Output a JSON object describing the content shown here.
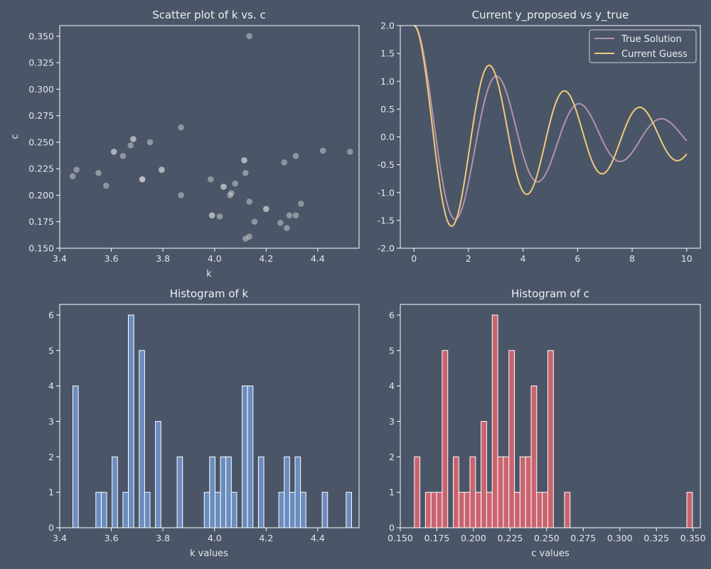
{
  "colors": {
    "background": "#4a5568",
    "axis": "#ffffff",
    "scatter": "#c8c8c8",
    "hist_k": "#6a8cbf",
    "hist_c": "#c9646e",
    "true_solution": "#b592ad",
    "current_guess": "#f3c97c"
  },
  "chart_data": [
    {
      "type": "scatter",
      "title": "Scatter plot of k vs. c",
      "xlabel": "k",
      "ylabel": "c",
      "xlim": [
        3.4,
        4.56
      ],
      "ylim": [
        0.15,
        0.36
      ],
      "xticks": [
        "3.4",
        "3.6",
        "3.8",
        "4.0",
        "4.2",
        "4.4"
      ],
      "yticks": [
        "0.150",
        "0.175",
        "0.200",
        "0.225",
        "0.250",
        "0.275",
        "0.300",
        "0.325",
        "0.350"
      ],
      "grid": false,
      "points": [
        {
          "x": 3.45,
          "y": 0.218
        },
        {
          "x": 3.465,
          "y": 0.224
        },
        {
          "x": 3.55,
          "y": 0.221
        },
        {
          "x": 3.58,
          "y": 0.209
        },
        {
          "x": 3.61,
          "y": 0.241
        },
        {
          "x": 3.61,
          "y": 0.241
        },
        {
          "x": 3.645,
          "y": 0.237
        },
        {
          "x": 3.675,
          "y": 0.247
        },
        {
          "x": 3.685,
          "y": 0.253
        },
        {
          "x": 3.685,
          "y": 0.253
        },
        {
          "x": 3.72,
          "y": 0.215
        },
        {
          "x": 3.72,
          "y": 0.215
        },
        {
          "x": 3.72,
          "y": 0.215
        },
        {
          "x": 3.75,
          "y": 0.25
        },
        {
          "x": 3.795,
          "y": 0.224
        },
        {
          "x": 3.795,
          "y": 0.224
        },
        {
          "x": 3.87,
          "y": 0.264
        },
        {
          "x": 3.87,
          "y": 0.2
        },
        {
          "x": 3.985,
          "y": 0.215
        },
        {
          "x": 3.99,
          "y": 0.181
        },
        {
          "x": 3.99,
          "y": 0.181
        },
        {
          "x": 4.02,
          "y": 0.18
        },
        {
          "x": 4.035,
          "y": 0.208
        },
        {
          "x": 4.035,
          "y": 0.208
        },
        {
          "x": 4.06,
          "y": 0.2
        },
        {
          "x": 4.065,
          "y": 0.202
        },
        {
          "x": 4.08,
          "y": 0.211
        },
        {
          "x": 4.115,
          "y": 0.233
        },
        {
          "x": 4.115,
          "y": 0.233
        },
        {
          "x": 4.12,
          "y": 0.221
        },
        {
          "x": 4.12,
          "y": 0.159
        },
        {
          "x": 4.135,
          "y": 0.161
        },
        {
          "x": 4.135,
          "y": 0.194
        },
        {
          "x": 4.135,
          "y": 0.35
        },
        {
          "x": 4.155,
          "y": 0.175
        },
        {
          "x": 4.2,
          "y": 0.187
        },
        {
          "x": 4.2,
          "y": 0.187
        },
        {
          "x": 4.255,
          "y": 0.174
        },
        {
          "x": 4.27,
          "y": 0.231
        },
        {
          "x": 4.28,
          "y": 0.169
        },
        {
          "x": 4.29,
          "y": 0.181
        },
        {
          "x": 4.315,
          "y": 0.181
        },
        {
          "x": 4.315,
          "y": 0.237
        },
        {
          "x": 4.335,
          "y": 0.192
        },
        {
          "x": 4.42,
          "y": 0.242
        },
        {
          "x": 4.525,
          "y": 0.241
        }
      ]
    },
    {
      "type": "line",
      "title": "Current y_proposed vs y_true",
      "xlim": [
        -0.5,
        10.5
      ],
      "ylim": [
        -2.0,
        2.0
      ],
      "xticks": [
        "0",
        "2",
        "4",
        "6",
        "8",
        "10"
      ],
      "yticks": [
        "-2.0",
        "-1.5",
        "-1.0",
        "-0.5",
        "0.0",
        "0.5",
        "1.0",
        "1.5",
        "2.0"
      ],
      "grid": false,
      "legend_position": "top-right",
      "series": [
        {
          "name": "True Solution",
          "color": "#b592ad",
          "x_range": [
            0,
            10
          ],
          "k": 2.087,
          "c": 0.2,
          "y0": 2
        },
        {
          "name": "Current Guess",
          "color": "#f3c97c",
          "x_range": [
            0,
            10
          ],
          "k": 2.283,
          "c": 0.16,
          "y0": 2
        }
      ]
    },
    {
      "type": "bar",
      "title": "Histogram of k",
      "xlabel": "k values",
      "xlim": [
        3.4,
        4.56
      ],
      "ylim": [
        0,
        6.3
      ],
      "xticks": [
        "3.4",
        "3.6",
        "3.8",
        "4.0",
        "4.2",
        "4.4"
      ],
      "yticks": [
        "0",
        "1",
        "2",
        "3",
        "4",
        "5",
        "6"
      ],
      "grid": false,
      "bins": [
        {
          "x0": 3.451,
          "x1": 3.472,
          "count": 4
        },
        {
          "x0": 3.54,
          "x1": 3.561,
          "count": 1
        },
        {
          "x0": 3.561,
          "x1": 3.582,
          "count": 1
        },
        {
          "x0": 3.603,
          "x1": 3.624,
          "count": 2
        },
        {
          "x0": 3.645,
          "x1": 3.666,
          "count": 1
        },
        {
          "x0": 3.666,
          "x1": 3.687,
          "count": 6
        },
        {
          "x0": 3.708,
          "x1": 3.729,
          "count": 5
        },
        {
          "x0": 3.729,
          "x1": 3.75,
          "count": 1
        },
        {
          "x0": 3.771,
          "x1": 3.792,
          "count": 3
        },
        {
          "x0": 3.855,
          "x1": 3.876,
          "count": 2
        },
        {
          "x0": 3.96,
          "x1": 3.981,
          "count": 1
        },
        {
          "x0": 3.981,
          "x1": 4.002,
          "count": 2
        },
        {
          "x0": 4.002,
          "x1": 4.023,
          "count": 1
        },
        {
          "x0": 4.023,
          "x1": 4.044,
          "count": 2
        },
        {
          "x0": 4.044,
          "x1": 4.065,
          "count": 2
        },
        {
          "x0": 4.065,
          "x1": 4.086,
          "count": 1
        },
        {
          "x0": 4.107,
          "x1": 4.128,
          "count": 4
        },
        {
          "x0": 4.128,
          "x1": 4.149,
          "count": 4
        },
        {
          "x0": 4.17,
          "x1": 4.191,
          "count": 2
        },
        {
          "x0": 4.249,
          "x1": 4.27,
          "count": 1
        },
        {
          "x0": 4.27,
          "x1": 4.291,
          "count": 2
        },
        {
          "x0": 4.291,
          "x1": 4.312,
          "count": 1
        },
        {
          "x0": 4.312,
          "x1": 4.333,
          "count": 2
        },
        {
          "x0": 4.333,
          "x1": 4.354,
          "count": 1
        },
        {
          "x0": 4.417,
          "x1": 4.438,
          "count": 1
        },
        {
          "x0": 4.51,
          "x1": 4.531,
          "count": 1
        }
      ]
    },
    {
      "type": "bar",
      "title": "Histogram of c",
      "xlabel": "c values",
      "xlim": [
        0.15,
        0.355
      ],
      "ylim": [
        0,
        6.3
      ],
      "xticks": [
        "0.150",
        "0.175",
        "0.200",
        "0.225",
        "0.250",
        "0.275",
        "0.300",
        "0.325",
        "0.350"
      ],
      "yticks": [
        "0",
        "1",
        "2",
        "3",
        "4",
        "5",
        "6"
      ],
      "grid": false,
      "bins": [
        {
          "x0": 0.1596,
          "x1": 0.1634,
          "count": 2
        },
        {
          "x0": 0.1672,
          "x1": 0.171,
          "count": 1
        },
        {
          "x0": 0.171,
          "x1": 0.1748,
          "count": 1
        },
        {
          "x0": 0.1748,
          "x1": 0.1786,
          "count": 1
        },
        {
          "x0": 0.1786,
          "x1": 0.1824,
          "count": 5
        },
        {
          "x0": 0.1862,
          "x1": 0.19,
          "count": 2
        },
        {
          "x0": 0.19,
          "x1": 0.1938,
          "count": 1
        },
        {
          "x0": 0.1938,
          "x1": 0.1976,
          "count": 1
        },
        {
          "x0": 0.1976,
          "x1": 0.2014,
          "count": 2
        },
        {
          "x0": 0.2014,
          "x1": 0.2052,
          "count": 1
        },
        {
          "x0": 0.2052,
          "x1": 0.209,
          "count": 3
        },
        {
          "x0": 0.209,
          "x1": 0.2128,
          "count": 1
        },
        {
          "x0": 0.2128,
          "x1": 0.2166,
          "count": 6
        },
        {
          "x0": 0.2166,
          "x1": 0.2204,
          "count": 2
        },
        {
          "x0": 0.2204,
          "x1": 0.2242,
          "count": 2
        },
        {
          "x0": 0.2242,
          "x1": 0.228,
          "count": 5
        },
        {
          "x0": 0.228,
          "x1": 0.2318,
          "count": 1
        },
        {
          "x0": 0.2318,
          "x1": 0.2356,
          "count": 2
        },
        {
          "x0": 0.2356,
          "x1": 0.2394,
          "count": 2
        },
        {
          "x0": 0.2394,
          "x1": 0.2432,
          "count": 4
        },
        {
          "x0": 0.2432,
          "x1": 0.247,
          "count": 1
        },
        {
          "x0": 0.247,
          "x1": 0.2508,
          "count": 1
        },
        {
          "x0": 0.2508,
          "x1": 0.2546,
          "count": 5
        },
        {
          "x0": 0.2622,
          "x1": 0.266,
          "count": 1
        },
        {
          "x0": 0.3458,
          "x1": 0.3496,
          "count": 1
        }
      ]
    }
  ]
}
